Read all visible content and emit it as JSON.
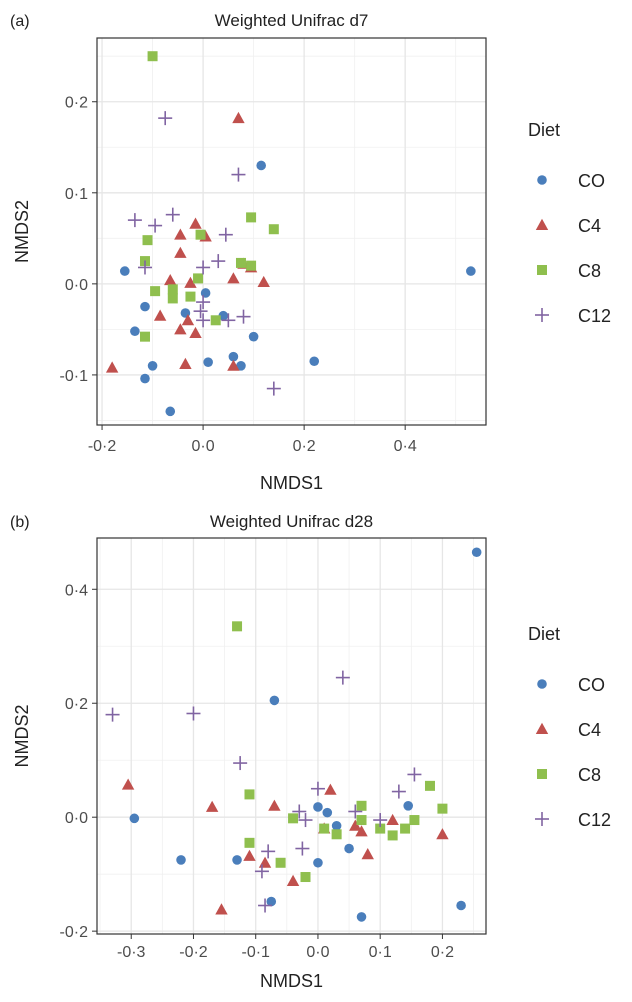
{
  "colors": {
    "CO": "#4a7ebb",
    "C4": "#c0504d",
    "C8": "#8fbf4e",
    "C12": "#8064a2",
    "grid": "#e6e6e6",
    "panel_border": "#333333"
  },
  "legend": {
    "title": "Diet",
    "items": [
      {
        "label": "CO",
        "shape": "circle"
      },
      {
        "label": "C4",
        "shape": "triangle"
      },
      {
        "label": "C8",
        "shape": "square"
      },
      {
        "label": "C12",
        "shape": "plus"
      }
    ]
  },
  "chart_data": [
    {
      "panel_label": "(a)",
      "type": "scatter",
      "title": "Weighted Unifrac d7",
      "xlabel": "NMDS1",
      "ylabel": "NMDS2",
      "xlim": [
        -0.21,
        0.56
      ],
      "ylim": [
        -0.155,
        0.27
      ],
      "xticks": [
        -0.2,
        0.0,
        0.2,
        0.4
      ],
      "xtick_labels": [
        "-0·2",
        "0·0",
        "0·2",
        "0·4"
      ],
      "yticks": [
        -0.1,
        0.0,
        0.1,
        0.2
      ],
      "ytick_labels": [
        "-0·1",
        "0·0",
        "0·1",
        "0·2"
      ],
      "grid": true,
      "legend_position": "right",
      "series": [
        {
          "name": "CO",
          "points": [
            [
              0.115,
              0.13
            ],
            [
              -0.155,
              0.014
            ],
            [
              -0.115,
              -0.025
            ],
            [
              -0.135,
              -0.052
            ],
            [
              -0.035,
              -0.032
            ],
            [
              0.005,
              -0.01
            ],
            [
              0.04,
              -0.035
            ],
            [
              0.1,
              -0.058
            ],
            [
              -0.1,
              -0.09
            ],
            [
              0.01,
              -0.086
            ],
            [
              0.06,
              -0.08
            ],
            [
              0.075,
              -0.09
            ],
            [
              -0.115,
              -0.104
            ],
            [
              -0.065,
              -0.14
            ],
            [
              0.22,
              -0.085
            ],
            [
              0.53,
              0.014
            ]
          ]
        },
        {
          "name": "C4",
          "points": [
            [
              0.07,
              0.182
            ],
            [
              -0.015,
              0.066
            ],
            [
              -0.045,
              0.054
            ],
            [
              0.005,
              0.052
            ],
            [
              0.095,
              0.018
            ],
            [
              -0.045,
              0.034
            ],
            [
              -0.065,
              0.004
            ],
            [
              -0.025,
              0.001
            ],
            [
              0.06,
              0.006
            ],
            [
              0.08,
              0.022
            ],
            [
              0.12,
              0.002
            ],
            [
              -0.085,
              -0.035
            ],
            [
              -0.045,
              -0.05
            ],
            [
              -0.015,
              -0.054
            ],
            [
              -0.03,
              -0.04
            ],
            [
              -0.18,
              -0.092
            ],
            [
              -0.035,
              -0.088
            ],
            [
              0.06,
              -0.09
            ]
          ]
        },
        {
          "name": "C8",
          "points": [
            [
              -0.1,
              0.25
            ],
            [
              0.095,
              0.073
            ],
            [
              0.14,
              0.06
            ],
            [
              -0.11,
              0.048
            ],
            [
              -0.005,
              0.054
            ],
            [
              -0.115,
              0.025
            ],
            [
              0.075,
              0.023
            ],
            [
              0.095,
              0.02
            ],
            [
              -0.01,
              0.006
            ],
            [
              -0.06,
              -0.006
            ],
            [
              -0.095,
              -0.008
            ],
            [
              -0.06,
              -0.016
            ],
            [
              -0.025,
              -0.014
            ],
            [
              0.025,
              -0.04
            ],
            [
              -0.115,
              -0.058
            ]
          ]
        },
        {
          "name": "C12",
          "points": [
            [
              -0.075,
              0.182
            ],
            [
              0.07,
              0.12
            ],
            [
              -0.135,
              0.07
            ],
            [
              -0.095,
              0.064
            ],
            [
              -0.06,
              0.076
            ],
            [
              0.045,
              0.054
            ],
            [
              -0.115,
              0.018
            ],
            [
              0.0,
              0.018
            ],
            [
              0.03,
              0.025
            ],
            [
              0.0,
              -0.02
            ],
            [
              -0.005,
              -0.03
            ],
            [
              0.0,
              -0.04
            ],
            [
              0.05,
              -0.04
            ],
            [
              0.08,
              -0.036
            ],
            [
              0.14,
              -0.115
            ]
          ]
        }
      ]
    },
    {
      "panel_label": "(b)",
      "type": "scatter",
      "title": "Weighted Unifrac d28",
      "xlabel": "NMDS1",
      "ylabel": "NMDS2",
      "xlim": [
        -0.355,
        0.27
      ],
      "ylim": [
        -0.205,
        0.49
      ],
      "xticks": [
        -0.3,
        -0.2,
        -0.1,
        0.0,
        0.1,
        0.2
      ],
      "xtick_labels": [
        "-0·3",
        "-0·2",
        "-0·1",
        "0·0",
        "0·1",
        "0·2"
      ],
      "yticks": [
        -0.2,
        0.0,
        0.2,
        0.4
      ],
      "ytick_labels": [
        "-0·2",
        "0·0",
        "0·2",
        "0·4"
      ],
      "grid": true,
      "legend_position": "right",
      "series": [
        {
          "name": "CO",
          "points": [
            [
              0.255,
              0.465
            ],
            [
              -0.07,
              0.205
            ],
            [
              -0.295,
              -0.002
            ],
            [
              -0.22,
              -0.075
            ],
            [
              -0.13,
              -0.075
            ],
            [
              -0.075,
              -0.148
            ],
            [
              0.0,
              0.018
            ],
            [
              0.015,
              0.008
            ],
            [
              0.03,
              -0.015
            ],
            [
              0.0,
              -0.08
            ],
            [
              0.05,
              -0.055
            ],
            [
              0.145,
              0.02
            ],
            [
              0.07,
              -0.175
            ],
            [
              0.23,
              -0.155
            ]
          ]
        },
        {
          "name": "C4",
          "points": [
            [
              -0.305,
              0.057
            ],
            [
              -0.17,
              0.018
            ],
            [
              -0.155,
              -0.162
            ],
            [
              -0.07,
              0.02
            ],
            [
              -0.11,
              -0.068
            ],
            [
              -0.085,
              -0.08
            ],
            [
              -0.04,
              -0.112
            ],
            [
              0.02,
              0.048
            ],
            [
              0.07,
              -0.025
            ],
            [
              0.08,
              -0.065
            ],
            [
              0.12,
              -0.005
            ],
            [
              0.2,
              -0.03
            ],
            [
              0.06,
              -0.015
            ],
            [
              0.01,
              -0.02
            ]
          ]
        },
        {
          "name": "C8",
          "points": [
            [
              -0.13,
              0.335
            ],
            [
              -0.11,
              0.04
            ],
            [
              -0.11,
              -0.045
            ],
            [
              -0.06,
              -0.08
            ],
            [
              -0.04,
              -0.002
            ],
            [
              -0.02,
              -0.105
            ],
            [
              0.01,
              -0.02
            ],
            [
              0.03,
              -0.03
            ],
            [
              0.07,
              0.02
            ],
            [
              0.07,
              -0.005
            ],
            [
              0.1,
              -0.02
            ],
            [
              0.12,
              -0.032
            ],
            [
              0.14,
              -0.02
            ],
            [
              0.155,
              -0.005
            ],
            [
              0.18,
              0.055
            ],
            [
              0.2,
              0.015
            ]
          ]
        },
        {
          "name": "C12",
          "points": [
            [
              -0.33,
              0.18
            ],
            [
              -0.2,
              0.182
            ],
            [
              0.04,
              0.245
            ],
            [
              -0.125,
              0.095
            ],
            [
              -0.03,
              0.01
            ],
            [
              0.0,
              0.05
            ],
            [
              -0.02,
              -0.005
            ],
            [
              -0.025,
              -0.055
            ],
            [
              0.06,
              0.01
            ],
            [
              0.13,
              0.045
            ],
            [
              0.155,
              0.075
            ],
            [
              0.1,
              -0.005
            ],
            [
              -0.08,
              -0.06
            ],
            [
              -0.09,
              -0.095
            ],
            [
              -0.085,
              -0.155
            ]
          ]
        }
      ]
    }
  ]
}
